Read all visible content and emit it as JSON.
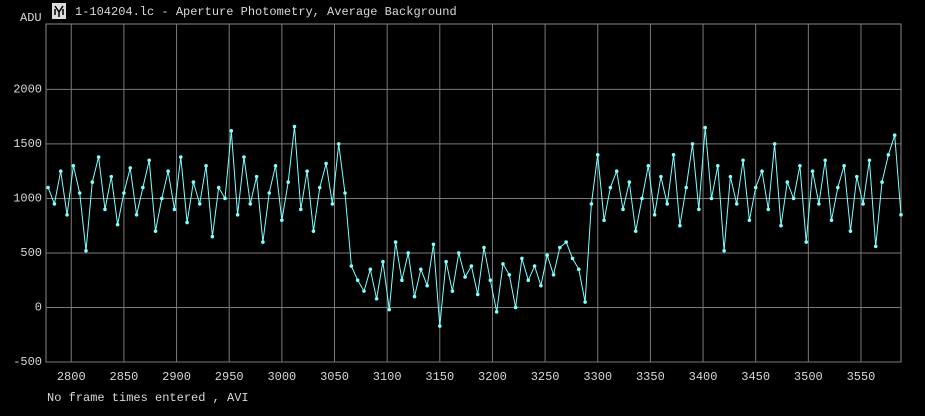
{
  "chart_data": {
    "type": "line",
    "title": "1-104204.lc - Aperture Photometry, Average Background",
    "y_label": "ADU",
    "footer": "No frame times entered , AVI",
    "xlim": [
      2776,
      3588
    ],
    "ylim": [
      -500,
      2600
    ],
    "xticks": [
      2800,
      2850,
      2900,
      2950,
      3000,
      3050,
      3100,
      3150,
      3200,
      3250,
      3300,
      3350,
      3400,
      3450,
      3500,
      3550
    ],
    "yticks": [
      -500,
      0,
      500,
      1000,
      1500,
      2000
    ],
    "grid": true,
    "x": [
      2778,
      2784,
      2790,
      2796,
      2802,
      2808,
      2814,
      2820,
      2826,
      2832,
      2838,
      2844,
      2850,
      2856,
      2862,
      2868,
      2874,
      2880,
      2886,
      2892,
      2898,
      2904,
      2910,
      2916,
      2922,
      2928,
      2934,
      2940,
      2946,
      2952,
      2958,
      2964,
      2970,
      2976,
      2982,
      2988,
      2994,
      3000,
      3006,
      3012,
      3018,
      3024,
      3030,
      3036,
      3042,
      3048,
      3054,
      3060,
      3066,
      3072,
      3078,
      3084,
      3090,
      3096,
      3102,
      3108,
      3114,
      3120,
      3126,
      3132,
      3138,
      3144,
      3150,
      3156,
      3162,
      3168,
      3174,
      3180,
      3186,
      3192,
      3198,
      3204,
      3210,
      3216,
      3222,
      3228,
      3234,
      3240,
      3246,
      3252,
      3258,
      3264,
      3270,
      3276,
      3282,
      3288,
      3294,
      3300,
      3306,
      3312,
      3318,
      3324,
      3330,
      3336,
      3342,
      3348,
      3354,
      3360,
      3366,
      3372,
      3378,
      3384,
      3390,
      3396,
      3402,
      3408,
      3414,
      3420,
      3426,
      3432,
      3438,
      3444,
      3450,
      3456,
      3462,
      3468,
      3474,
      3480,
      3486,
      3492,
      3498,
      3504,
      3510,
      3516,
      3522,
      3528,
      3534,
      3540,
      3546,
      3552,
      3558,
      3564,
      3570,
      3576,
      3582,
      3588
    ],
    "series": [
      {
        "color": "#80ffff",
        "values": [
          1100,
          950,
          1250,
          850,
          1300,
          1050,
          520,
          1150,
          1380,
          900,
          1200,
          760,
          1050,
          1280,
          850,
          1100,
          1350,
          700,
          1000,
          1250,
          900,
          1380,
          780,
          1150,
          950,
          1300,
          650,
          1100,
          1000,
          1620,
          850,
          1380,
          950,
          1200,
          600,
          1050,
          1300,
          800,
          1150,
          1660,
          900,
          1250,
          700,
          1100,
          1320,
          950,
          1500,
          1050,
          380,
          250,
          150,
          350,
          80,
          420,
          -20,
          600,
          250,
          500,
          100,
          350,
          200,
          580,
          -170,
          420,
          150,
          500,
          280,
          380,
          120,
          550,
          250,
          -40,
          400,
          300,
          0,
          450,
          250,
          380,
          200,
          480,
          300,
          550,
          600,
          450,
          350,
          50,
          950,
          1400,
          800,
          1100,
          1250,
          900,
          1150,
          700,
          1000,
          1300,
          850,
          1200,
          950,
          1400,
          750,
          1100,
          1500,
          900,
          1650,
          1000,
          1300,
          520,
          1200,
          950,
          1350,
          800,
          1100,
          1250,
          900,
          1500,
          750,
          1150,
          1000,
          1300,
          600,
          1250,
          950,
          1350,
          800,
          1100,
          1300,
          700,
          1200,
          950,
          1350,
          560,
          1150,
          1400,
          1580,
          850
        ]
      }
    ]
  }
}
